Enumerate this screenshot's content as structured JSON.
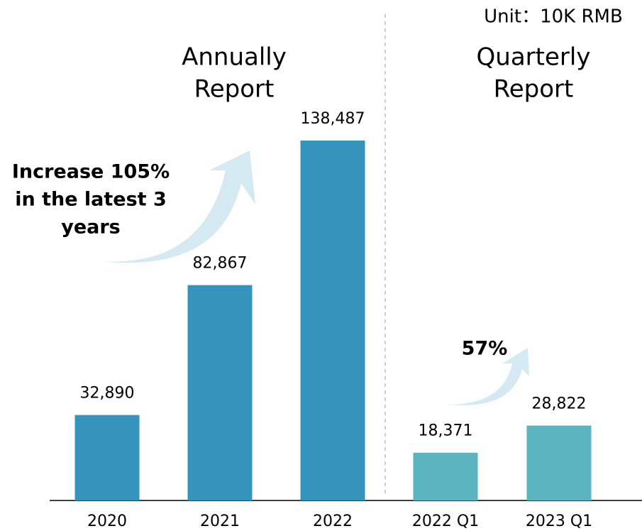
{
  "chart_data": {
    "type": "bar",
    "unit": "Unit：10K RMB",
    "section_labels": [
      [
        "Annually",
        "Report"
      ],
      [
        "Quarterly",
        "Report"
      ]
    ],
    "annotations": [
      [
        "Increase 105%",
        "in the latest 3",
        "years"
      ],
      [
        "57%"
      ]
    ],
    "categories": [
      "2020",
      "2021",
      "2022",
      "2022 Q1",
      "2023 Q1"
    ],
    "values": [
      32890,
      82867,
      138487,
      18371,
      28822
    ],
    "value_labels": [
      "32,890",
      "82,867",
      "138,487",
      "18,371",
      "28,822"
    ],
    "colors": [
      "#3594bc",
      "#3594bc",
      "#3594bc",
      "#5bb5c0",
      "#5bb5c0"
    ],
    "annotation_color": "#ee7d31"
  }
}
